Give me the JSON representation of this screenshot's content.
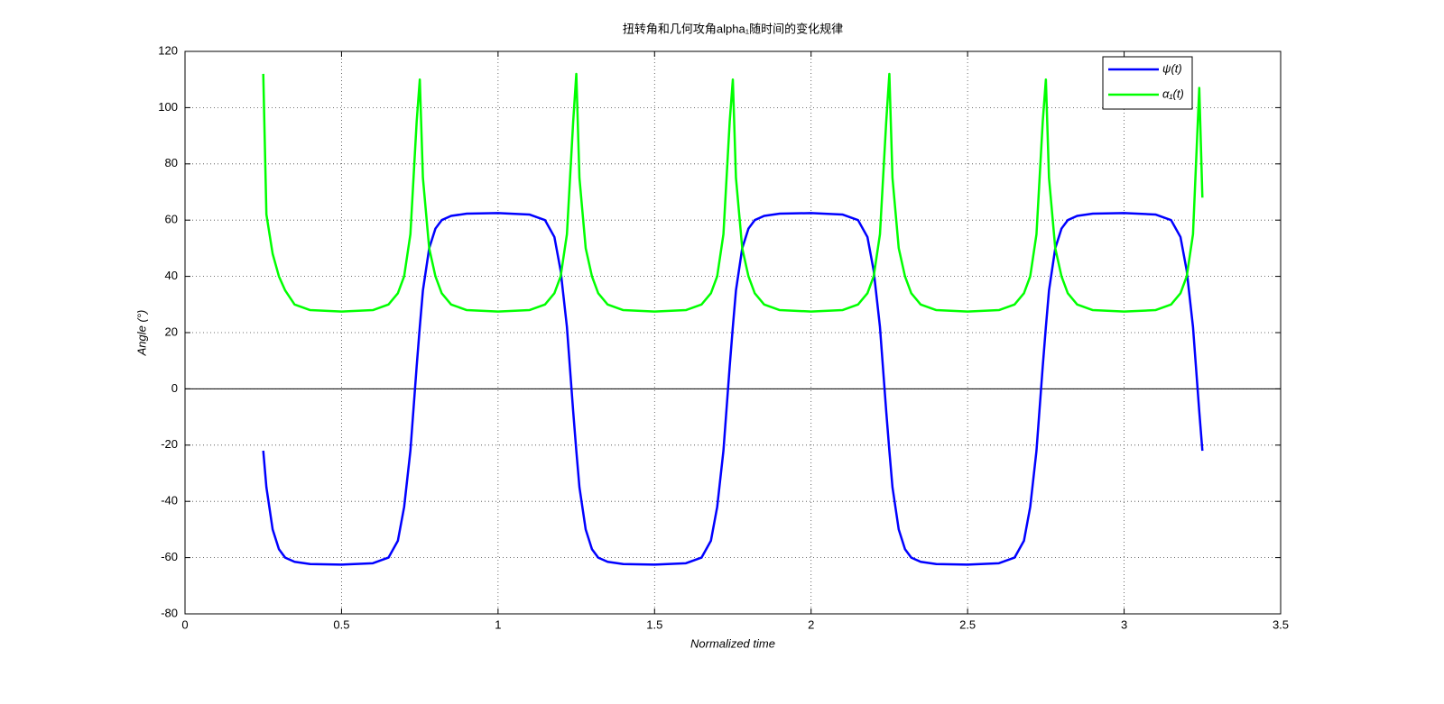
{
  "chart_data": {
    "type": "line",
    "title": "扭转角和几何攻角alpha₁随时间的变化规律",
    "x_label": "Normalized time",
    "y_label": "Angle (°)",
    "x": [
      0.25,
      0.26,
      0.28,
      0.3,
      0.32,
      0.35,
      0.4,
      0.5,
      0.6,
      0.65,
      0.68,
      0.7,
      0.72,
      0.74,
      0.75,
      0.76,
      0.78,
      0.8,
      0.82,
      0.85,
      0.9,
      1.0,
      1.1,
      1.15,
      1.18,
      1.2,
      1.22,
      1.24,
      1.25,
      1.26,
      1.28,
      1.3,
      1.32,
      1.35,
      1.4,
      1.5,
      1.6,
      1.65,
      1.68,
      1.7,
      1.72,
      1.74,
      1.75,
      1.76,
      1.78,
      1.8,
      1.82,
      1.85,
      1.9,
      2.0,
      2.1,
      2.15,
      2.18,
      2.2,
      2.22,
      2.24,
      2.25,
      2.26,
      2.28,
      2.3,
      2.32,
      2.35,
      2.4,
      2.5,
      2.6,
      2.65,
      2.68,
      2.7,
      2.72,
      2.74,
      2.75,
      2.76,
      2.78,
      2.8,
      2.82,
      2.85,
      2.9,
      3.0,
      3.1,
      3.15,
      3.18,
      3.2,
      3.22,
      3.24,
      3.25
    ],
    "series": [
      {
        "name": "ψ(t)",
        "color": "#0000ff",
        "values": [
          -22,
          -35,
          -50,
          -57,
          -60,
          -61.5,
          -62.3,
          -62.5,
          -62,
          -60,
          -54,
          -42,
          -22,
          8,
          22,
          35,
          50,
          57,
          60,
          61.5,
          62.3,
          62.5,
          62,
          60,
          54,
          42,
          22,
          -8,
          -22,
          -35,
          -50,
          -57,
          -60,
          -61.5,
          -62.3,
          -62.5,
          -62,
          -60,
          -54,
          -42,
          -22,
          8,
          22,
          35,
          50,
          57,
          60,
          61.5,
          62.3,
          62.5,
          62,
          60,
          54,
          42,
          22,
          -8,
          -22,
          -35,
          -50,
          -57,
          -60,
          -61.5,
          -62.3,
          -62.5,
          -62,
          -60,
          -54,
          -42,
          -22,
          8,
          22,
          35,
          50,
          57,
          60,
          61.5,
          62.3,
          62.5,
          62,
          60,
          54,
          42,
          22,
          -8,
          -22
        ]
      },
      {
        "name": "α₁(t)",
        "color": "#00ff00",
        "values": [
          112,
          62,
          48,
          40,
          35,
          30,
          28,
          27.5,
          28,
          30,
          34,
          40,
          55,
          95,
          110,
          75,
          50,
          40,
          34,
          30,
          28,
          27.5,
          28,
          30,
          34,
          40,
          55,
          95,
          112,
          75,
          50,
          40,
          34,
          30,
          28,
          27.5,
          28,
          30,
          34,
          40,
          55,
          95,
          110,
          75,
          50,
          40,
          34,
          30,
          28,
          27.5,
          28,
          30,
          34,
          40,
          55,
          95,
          112,
          75,
          50,
          40,
          34,
          30,
          28,
          27.5,
          28,
          30,
          34,
          40,
          55,
          95,
          110,
          75,
          50,
          40,
          34,
          30,
          28,
          27.5,
          28,
          30,
          34,
          40,
          55,
          107,
          68
        ]
      }
    ],
    "xlim": [
      0,
      3.5
    ],
    "xticks": [
      0,
      0.5,
      1,
      1.5,
      2,
      2.5,
      3,
      3.5
    ],
    "ylim": [
      -80,
      120
    ],
    "yticks": [
      -80,
      -60,
      -40,
      -20,
      0,
      20,
      40,
      60,
      80,
      100,
      120
    ],
    "grid": true,
    "zero_line": true,
    "legend": "upper right"
  }
}
